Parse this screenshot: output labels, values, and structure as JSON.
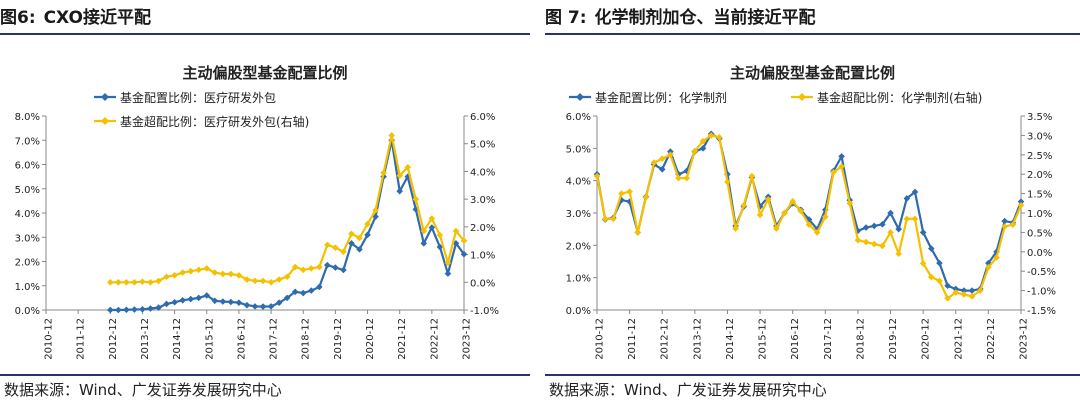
{
  "figures": [
    {
      "label": "图6:",
      "title": "CXO接近平配",
      "source": "数据来源：Wind、广发证券发展研究中心",
      "chart_data": {
        "type": "line",
        "title": "主动偏股型基金配置比例",
        "x": [
          "2010-12",
          "2011-12",
          "2012-12",
          "2013-12",
          "2014-12",
          "2015-12",
          "2016-12",
          "2017-12",
          "2018-12",
          "2019-12",
          "2020-12",
          "2021-12",
          "2022-12",
          "2023-12"
        ],
        "xlim": [
          2010.92,
          2023.92
        ],
        "y_left": {
          "ticks": [
            "0.0%",
            "1.0%",
            "2.0%",
            "3.0%",
            "4.0%",
            "5.0%",
            "6.0%",
            "7.0%",
            "8.0%"
          ],
          "ylim": [
            0,
            8
          ]
        },
        "y_right": {
          "ticks": [
            "-1.0%",
            "0.0%",
            "1.0%",
            "2.0%",
            "3.0%",
            "4.0%",
            "5.0%",
            "6.0%"
          ],
          "ylim": [
            -1,
            6
          ]
        },
        "legend_position": "top-left",
        "series": [
          {
            "name": "基金配置比例：医疗研发外包",
            "axis": "left",
            "color": "#2e6bb0",
            "marker": "diamond",
            "points": [
              [
                2012.92,
                0.0
              ],
              [
                2013.17,
                0.0
              ],
              [
                2013.42,
                0.01
              ],
              [
                2013.67,
                0.02
              ],
              [
                2013.92,
                0.03
              ],
              [
                2014.17,
                0.06
              ],
              [
                2014.42,
                0.1
              ],
              [
                2014.67,
                0.25
              ],
              [
                2014.92,
                0.32
              ],
              [
                2015.17,
                0.4
              ],
              [
                2015.42,
                0.45
              ],
              [
                2015.67,
                0.5
              ],
              [
                2015.92,
                0.6
              ],
              [
                2016.17,
                0.38
              ],
              [
                2016.42,
                0.35
              ],
              [
                2016.67,
                0.33
              ],
              [
                2016.92,
                0.3
              ],
              [
                2017.17,
                0.2
              ],
              [
                2017.42,
                0.15
              ],
              [
                2017.67,
                0.14
              ],
              [
                2017.92,
                0.15
              ],
              [
                2018.17,
                0.3
              ],
              [
                2018.42,
                0.5
              ],
              [
                2018.67,
                0.75
              ],
              [
                2018.92,
                0.7
              ],
              [
                2019.17,
                0.8
              ],
              [
                2019.42,
                0.95
              ],
              [
                2019.67,
                1.85
              ],
              [
                2019.92,
                1.75
              ],
              [
                2020.17,
                1.65
              ],
              [
                2020.42,
                2.75
              ],
              [
                2020.67,
                2.5
              ],
              [
                2020.92,
                3.1
              ],
              [
                2021.17,
                3.85
              ],
              [
                2021.42,
                5.5
              ],
              [
                2021.67,
                7.0
              ],
              [
                2021.92,
                4.9
              ],
              [
                2022.17,
                5.5
              ],
              [
                2022.42,
                4.15
              ],
              [
                2022.67,
                2.75
              ],
              [
                2022.92,
                3.4
              ],
              [
                2023.17,
                2.6
              ],
              [
                2023.42,
                1.5
              ],
              [
                2023.67,
                2.75
              ],
              [
                2023.92,
                2.3
              ]
            ]
          },
          {
            "name": "基金超配比例：医疗研发外包(右轴)",
            "axis": "right",
            "color": "#f5c000",
            "marker": "diamond",
            "points": [
              [
                2012.92,
                0.0
              ],
              [
                2013.17,
                0.0
              ],
              [
                2013.42,
                0.0
              ],
              [
                2013.67,
                0.0
              ],
              [
                2013.92,
                0.02
              ],
              [
                2014.17,
                0.0
              ],
              [
                2014.42,
                0.05
              ],
              [
                2014.67,
                0.2
              ],
              [
                2014.92,
                0.25
              ],
              [
                2015.17,
                0.35
              ],
              [
                2015.42,
                0.4
              ],
              [
                2015.67,
                0.45
              ],
              [
                2015.92,
                0.5
              ],
              [
                2016.17,
                0.35
              ],
              [
                2016.42,
                0.3
              ],
              [
                2016.67,
                0.3
              ],
              [
                2016.92,
                0.25
              ],
              [
                2017.17,
                0.1
              ],
              [
                2017.42,
                0.05
              ],
              [
                2017.67,
                0.05
              ],
              [
                2017.92,
                0.0
              ],
              [
                2018.17,
                0.1
              ],
              [
                2018.42,
                0.2
              ],
              [
                2018.67,
                0.55
              ],
              [
                2018.92,
                0.45
              ],
              [
                2019.17,
                0.5
              ],
              [
                2019.42,
                0.55
              ],
              [
                2019.67,
                1.35
              ],
              [
                2019.92,
                1.25
              ],
              [
                2020.17,
                1.1
              ],
              [
                2020.42,
                1.75
              ],
              [
                2020.67,
                1.6
              ],
              [
                2020.92,
                2.1
              ],
              [
                2021.17,
                2.6
              ],
              [
                2021.42,
                3.95
              ],
              [
                2021.67,
                5.3
              ],
              [
                2021.92,
                3.85
              ],
              [
                2022.17,
                4.15
              ],
              [
                2022.42,
                3.0
              ],
              [
                2022.67,
                1.85
              ],
              [
                2022.92,
                2.3
              ],
              [
                2023.17,
                1.7
              ],
              [
                2023.42,
                0.7
              ],
              [
                2023.67,
                1.85
              ],
              [
                2023.92,
                1.5
              ]
            ]
          }
        ]
      }
    },
    {
      "label": "图 7:",
      "title": "化学制剂加仓、当前接近平配",
      "source": "数据来源：Wind、广发证券发展研究中心",
      "chart_data": {
        "type": "line",
        "title": "主动偏股型基金配置比例",
        "x": [
          "2010-12",
          "2011-12",
          "2012-12",
          "2013-12",
          "2014-12",
          "2015-12",
          "2016-12",
          "2017-12",
          "2018-12",
          "2019-12",
          "2020-12",
          "2021-12",
          "2022-12",
          "2023-12"
        ],
        "xlim": [
          2010.92,
          2023.92
        ],
        "y_left": {
          "ticks": [
            "0.0%",
            "1.0%",
            "2.0%",
            "3.0%",
            "4.0%",
            "5.0%",
            "6.0%"
          ],
          "ylim": [
            0,
            6
          ]
        },
        "y_right": {
          "ticks": [
            "-1.5%",
            "-1.0%",
            "-0.5%",
            "0.0%",
            "0.5%",
            "1.0%",
            "1.5%",
            "2.0%",
            "2.5%",
            "3.0%",
            "3.5%"
          ],
          "ylim": [
            -1.5,
            3.5
          ]
        },
        "legend_position": "top",
        "series": [
          {
            "name": "基金配置比例：化学制剂",
            "axis": "left",
            "color": "#2e6bb0",
            "marker": "diamond",
            "points": [
              [
                2010.92,
                4.2
              ],
              [
                2011.17,
                2.8
              ],
              [
                2011.42,
                2.85
              ],
              [
                2011.67,
                3.4
              ],
              [
                2011.92,
                3.35
              ],
              [
                2012.17,
                2.4
              ],
              [
                2012.42,
                3.5
              ],
              [
                2012.67,
                4.5
              ],
              [
                2012.92,
                4.35
              ],
              [
                2013.17,
                4.9
              ],
              [
                2013.42,
                4.2
              ],
              [
                2013.67,
                4.3
              ],
              [
                2013.92,
                4.9
              ],
              [
                2014.17,
                5.0
              ],
              [
                2014.42,
                5.45
              ],
              [
                2014.67,
                5.3
              ],
              [
                2014.92,
                4.2
              ],
              [
                2015.17,
                2.6
              ],
              [
                2015.42,
                3.2
              ],
              [
                2015.67,
                4.1
              ],
              [
                2015.92,
                3.2
              ],
              [
                2016.17,
                3.5
              ],
              [
                2016.42,
                2.6
              ],
              [
                2016.67,
                3.0
              ],
              [
                2016.92,
                3.3
              ],
              [
                2017.17,
                3.1
              ],
              [
                2017.42,
                2.8
              ],
              [
                2017.67,
                2.5
              ],
              [
                2017.92,
                3.1
              ],
              [
                2018.17,
                4.3
              ],
              [
                2018.42,
                4.75
              ],
              [
                2018.67,
                3.4
              ],
              [
                2018.92,
                2.45
              ],
              [
                2019.17,
                2.55
              ],
              [
                2019.42,
                2.6
              ],
              [
                2019.67,
                2.65
              ],
              [
                2019.92,
                3.0
              ],
              [
                2020.17,
                2.5
              ],
              [
                2020.42,
                3.45
              ],
              [
                2020.67,
                3.65
              ],
              [
                2020.92,
                2.4
              ],
              [
                2021.17,
                1.9
              ],
              [
                2021.42,
                1.45
              ],
              [
                2021.67,
                0.75
              ],
              [
                2021.92,
                0.65
              ],
              [
                2022.17,
                0.6
              ],
              [
                2022.42,
                0.6
              ],
              [
                2022.67,
                0.65
              ],
              [
                2022.92,
                1.45
              ],
              [
                2023.17,
                1.8
              ],
              [
                2023.42,
                2.75
              ],
              [
                2023.67,
                2.7
              ],
              [
                2023.92,
                3.35
              ]
            ]
          },
          {
            "name": "基金超配比例：化学制剂(右轴)",
            "axis": "right",
            "color": "#f5c000",
            "marker": "diamond",
            "points": [
              [
                2010.92,
                1.95
              ],
              [
                2011.17,
                0.85
              ],
              [
                2011.42,
                0.85
              ],
              [
                2011.67,
                1.5
              ],
              [
                2011.92,
                1.55
              ],
              [
                2012.17,
                0.5
              ],
              [
                2012.42,
                1.4
              ],
              [
                2012.67,
                2.3
              ],
              [
                2012.92,
                2.4
              ],
              [
                2013.17,
                2.5
              ],
              [
                2013.42,
                1.9
              ],
              [
                2013.67,
                1.9
              ],
              [
                2013.92,
                2.6
              ],
              [
                2014.17,
                2.85
              ],
              [
                2014.42,
                3.0
              ],
              [
                2014.67,
                2.95
              ],
              [
                2014.92,
                1.8
              ],
              [
                2015.17,
                0.6
              ],
              [
                2015.42,
                1.2
              ],
              [
                2015.67,
                1.95
              ],
              [
                2015.92,
                0.95
              ],
              [
                2016.17,
                1.35
              ],
              [
                2016.42,
                0.6
              ],
              [
                2016.67,
                1.0
              ],
              [
                2016.92,
                1.3
              ],
              [
                2017.17,
                1.05
              ],
              [
                2017.42,
                0.7
              ],
              [
                2017.67,
                0.5
              ],
              [
                2017.92,
                0.9
              ],
              [
                2018.17,
                2.05
              ],
              [
                2018.42,
                2.2
              ],
              [
                2018.67,
                1.25
              ],
              [
                2018.92,
                0.3
              ],
              [
                2019.17,
                0.25
              ],
              [
                2019.42,
                0.2
              ],
              [
                2019.67,
                0.15
              ],
              [
                2019.92,
                0.5
              ],
              [
                2020.17,
                -0.05
              ],
              [
                2020.42,
                0.85
              ],
              [
                2020.67,
                0.85
              ],
              [
                2020.92,
                -0.3
              ],
              [
                2021.17,
                -0.65
              ],
              [
                2021.42,
                -0.75
              ],
              [
                2021.67,
                -1.2
              ],
              [
                2021.92,
                -1.05
              ],
              [
                2022.17,
                -1.1
              ],
              [
                2022.42,
                -1.15
              ],
              [
                2022.67,
                -1.0
              ],
              [
                2022.92,
                -0.4
              ],
              [
                2023.17,
                -0.15
              ],
              [
                2023.42,
                0.65
              ],
              [
                2023.67,
                0.7
              ],
              [
                2023.92,
                1.2
              ]
            ]
          }
        ]
      }
    }
  ]
}
